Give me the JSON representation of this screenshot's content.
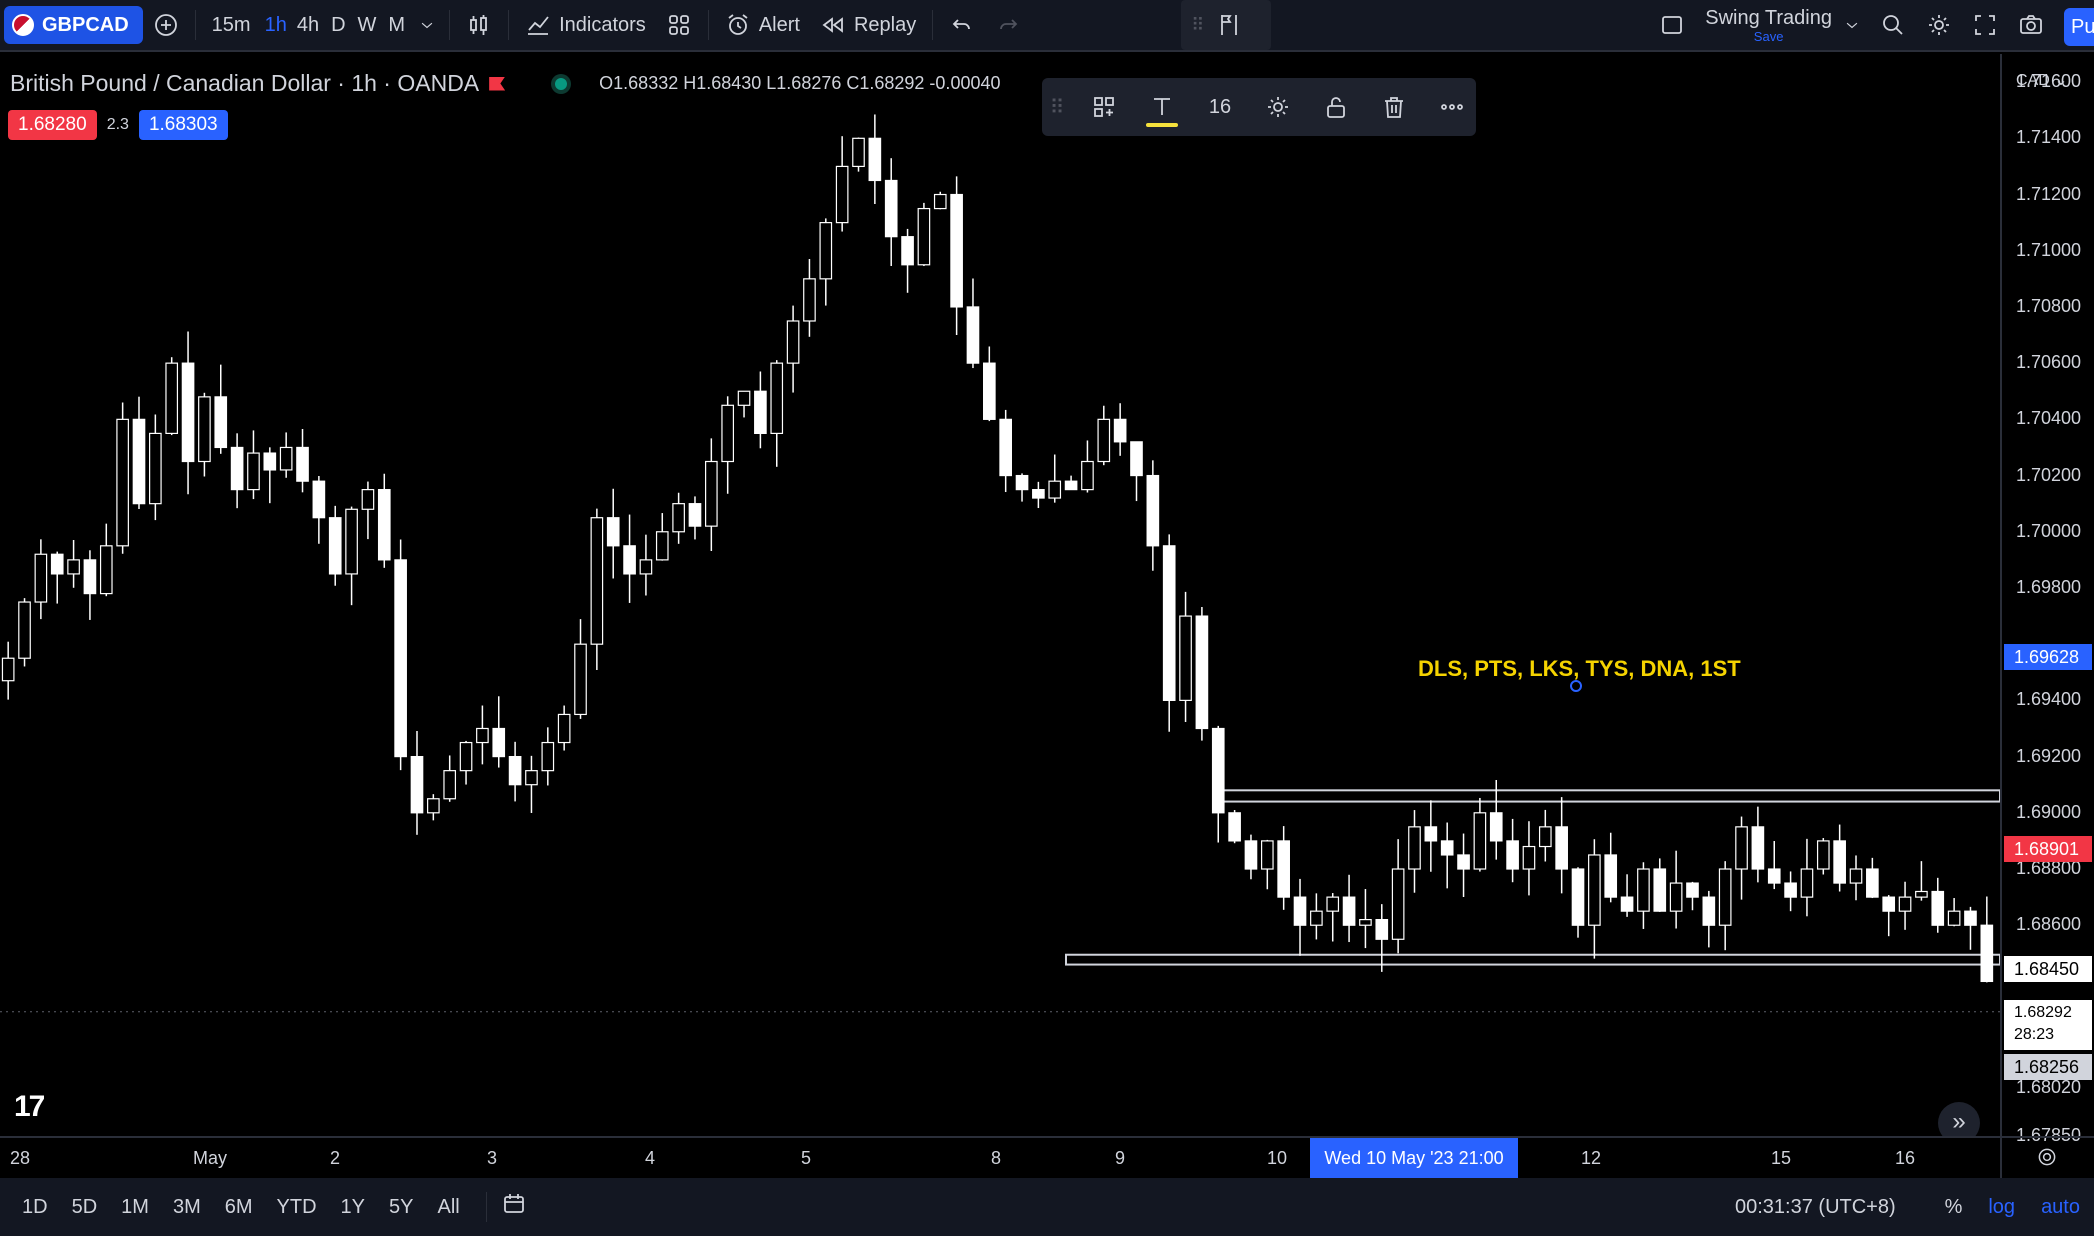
{
  "toolbar": {
    "symbol": "GBPCAD",
    "timeframes": [
      "15m",
      "1h",
      "4h",
      "D",
      "W",
      "M"
    ],
    "active_timeframe": "1h",
    "indicators_label": "Indicators",
    "alert_label": "Alert",
    "replay_label": "Replay",
    "layout_name": "Swing Trading",
    "layout_save": "Save",
    "publish_label": "Pu"
  },
  "legend": {
    "pair": "British Pound / Canadian Dollar · 1h · OANDA",
    "ohlc": "O1.68332  H1.68430  L1.68276  C1.68292  -0.00040",
    "bid": "1.68280",
    "ask": "1.68303",
    "spread": "2.3"
  },
  "float_toolbar": {
    "font_size": "16"
  },
  "annotation": {
    "text": "DLS, PTS, LKS, TYS, DNA, 1ST"
  },
  "price_axis": {
    "currency": "CAD",
    "labels": [
      "1.71600",
      "1.71400",
      "1.71200",
      "1.71000",
      "1.70800",
      "1.70600",
      "1.70400",
      "1.70200",
      "1.70000",
      "1.69800",
      "1.69400",
      "1.69200",
      "1.69000",
      "1.68800",
      "1.68600",
      "1.68020",
      "1.67850"
    ],
    "tag_blue": "1.69628",
    "tag_red": "1.68901",
    "tag_grey_top": "1.68450",
    "current_price": "1.68292",
    "countdown": "28:23",
    "tag_grey_bottom": "1.68256",
    "colors": {
      "up": "#ffffff",
      "down": "#ffffff",
      "blue_tag": "#2962ff",
      "red_tag": "#f23645"
    }
  },
  "time_axis": {
    "labels": [
      "28",
      "May",
      "2",
      "3",
      "4",
      "5",
      "8",
      "9",
      "10",
      "12",
      "15",
      "16"
    ],
    "crosshair_label": "Wed 10 May '23   21:00"
  },
  "bottom_bar": {
    "ranges": [
      "1D",
      "5D",
      "1M",
      "3M",
      "6M",
      "YTD",
      "1Y",
      "5Y",
      "All"
    ],
    "clock": "00:31:37 (UTC+8)",
    "percent": "%",
    "log": "log",
    "auto": "auto"
  },
  "chart_data": {
    "type": "candlestick",
    "symbol": "GBPCAD",
    "interval": "1h",
    "ylim": [
      1.6785,
      1.717
    ],
    "zones": [
      {
        "top": 1.6908,
        "bottom": 1.6904
      },
      {
        "top": 1.68495,
        "bottom": 1.6846
      }
    ],
    "closes": [
      1.6955,
      1.6975,
      1.6992,
      1.6985,
      1.699,
      1.6978,
      1.6995,
      1.704,
      1.701,
      1.7035,
      1.706,
      1.7025,
      1.7048,
      1.703,
      1.7015,
      1.7028,
      1.7022,
      1.703,
      1.7018,
      1.7005,
      1.6985,
      1.7008,
      1.7015,
      1.699,
      1.692,
      1.69,
      1.6905,
      1.6915,
      1.6925,
      1.693,
      1.692,
      1.691,
      1.6915,
      1.6925,
      1.6935,
      1.696,
      1.7005,
      1.6995,
      1.6985,
      1.699,
      1.7,
      1.701,
      1.7002,
      1.7025,
      1.7045,
      1.705,
      1.7035,
      1.706,
      1.7075,
      1.709,
      1.711,
      1.713,
      1.714,
      1.7125,
      1.7105,
      1.7095,
      1.7115,
      1.712,
      1.708,
      1.706,
      1.704,
      1.702,
      1.7015,
      1.7012,
      1.7018,
      1.7015,
      1.7025,
      1.704,
      1.7032,
      1.702,
      1.6995,
      1.694,
      1.697,
      1.693,
      1.69,
      1.689,
      1.688,
      1.689,
      1.687,
      1.686,
      1.6865,
      1.687,
      1.686,
      1.6862,
      1.6855,
      1.688,
      1.6895,
      1.689,
      1.6885,
      1.688,
      1.69,
      1.689,
      1.688,
      1.6888,
      1.6895,
      1.688,
      1.686,
      1.6885,
      1.687,
      1.6865,
      1.688,
      1.6865,
      1.6875,
      1.687,
      1.686,
      1.688,
      1.6895,
      1.688,
      1.6875,
      1.687,
      1.688,
      1.689,
      1.6875,
      1.688,
      1.687,
      1.6865,
      1.687,
      1.6872,
      1.686,
      1.6865,
      1.686,
      1.684
    ]
  }
}
